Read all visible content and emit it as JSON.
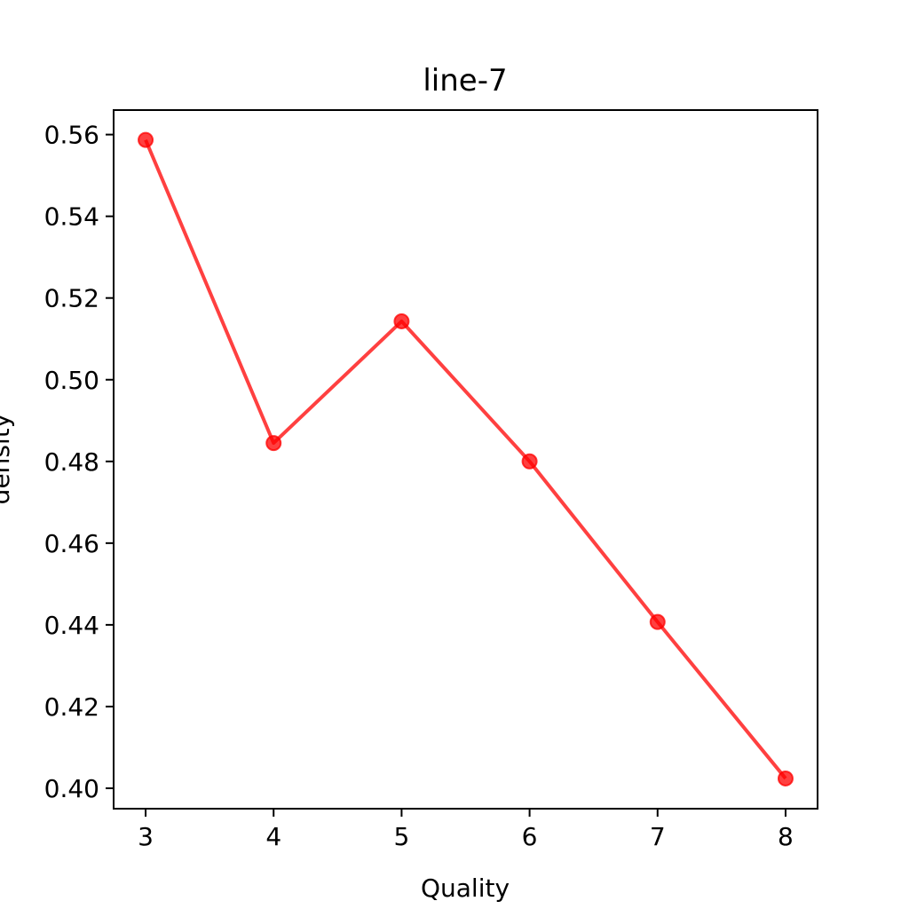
{
  "chart_data": {
    "type": "line",
    "title": "line-7",
    "xlabel": "Quality",
    "ylabel": "density",
    "x": [
      3,
      4,
      5,
      6,
      7,
      8
    ],
    "series": [
      {
        "values": [
          0.5587,
          0.4845,
          0.5143,
          0.48,
          0.4407,
          0.4024
        ],
        "color": "#ff0000"
      }
    ],
    "xlim": [
      2.75,
      8.25
    ],
    "ylim": [
      0.395,
      0.566
    ],
    "xticks": [
      3,
      4,
      5,
      6,
      7,
      8
    ],
    "yticks": [
      0.4,
      0.42,
      0.44,
      0.46,
      0.48,
      0.5,
      0.52,
      0.54,
      0.56
    ],
    "grid": false,
    "marker": "circle"
  }
}
